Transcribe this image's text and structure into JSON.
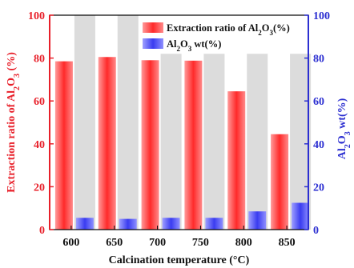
{
  "chart_data": {
    "type": "bar",
    "categories": [
      "600",
      "650",
      "700",
      "750",
      "800",
      "850"
    ],
    "series": [
      {
        "name": "Extraction ratio of Al2O3(%)",
        "axis": "left",
        "values": [
          78.5,
          80.5,
          79,
          78.8,
          64.5,
          44.5
        ],
        "color": "#ff2a2a"
      },
      {
        "name": "Al2O3 wt(%)",
        "axis": "right",
        "values": [
          5.5,
          5,
          5.5,
          5.5,
          8.5,
          12.5
        ],
        "color": "#3a3cf0"
      }
    ],
    "background_bars": [
      100,
      100,
      82,
      82,
      82,
      82
    ],
    "background_color": "#dcdcdc",
    "xlabel": "Calcination  temperature (°C)",
    "ylabel_left": "Extraction ratio of Al2O3 (%)",
    "ylabel_right": "Al2O3 wt(%)",
    "ylim_left": [
      0,
      100
    ],
    "yticks_left": [
      0,
      20,
      40,
      60,
      80,
      100
    ],
    "ylim_right": [
      0,
      100
    ],
    "yticks_right": [
      0,
      20,
      40,
      60,
      80,
      100
    ],
    "legend_position": "top-right",
    "left_axis_color": "#e8202a",
    "right_axis_color": "#2c2fd1",
    "grid": false
  }
}
